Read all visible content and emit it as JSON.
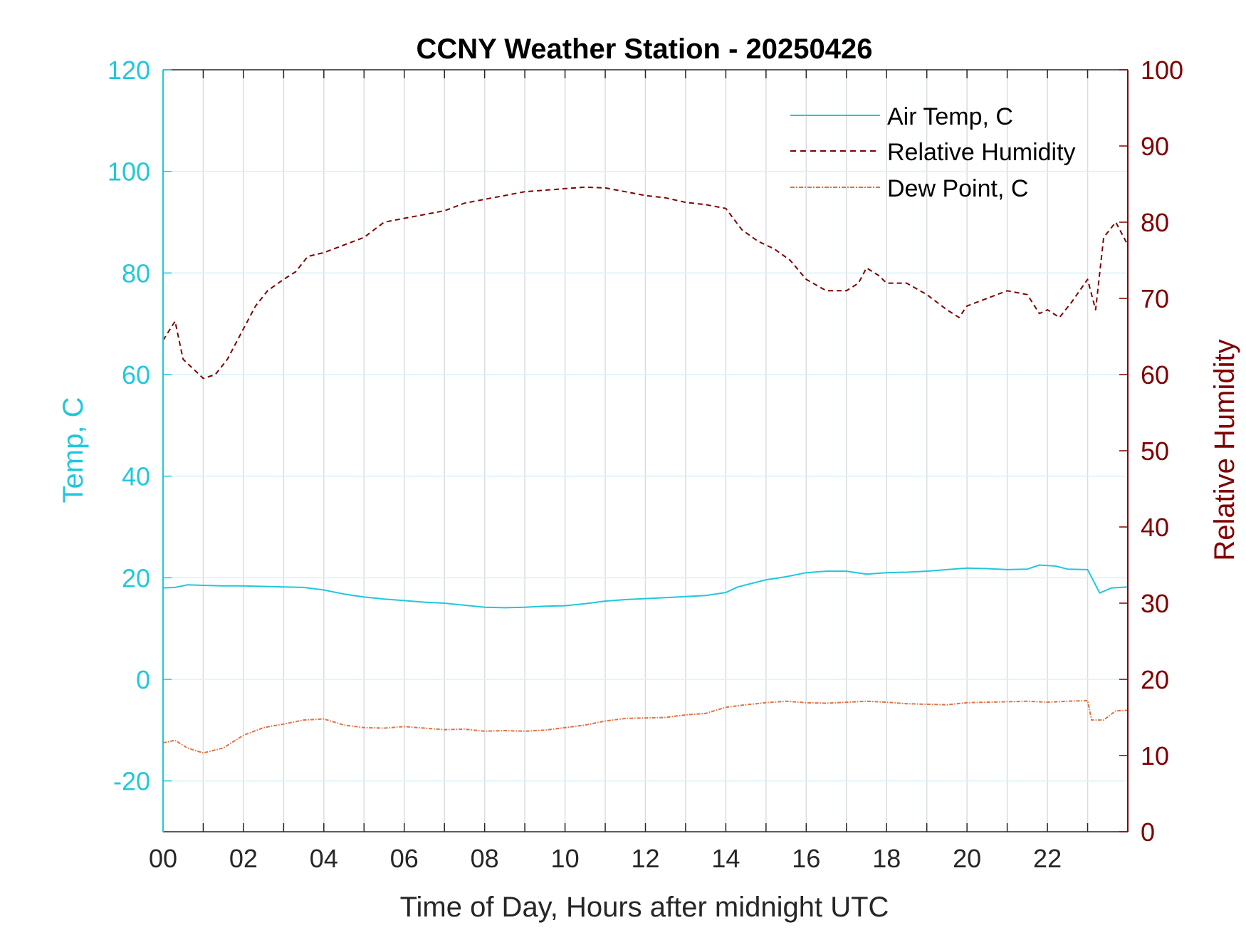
{
  "chart_data": {
    "type": "line",
    "title": "CCNY Weather Station - 20250426",
    "xlabel": "Time of Day, Hours after midnight UTC",
    "ylabel_left": "Temp, C",
    "ylabel_right": "Relative Humidity",
    "xlim": [
      0,
      24
    ],
    "ylim_left": [
      -30,
      120
    ],
    "ylim_right": [
      0,
      100
    ],
    "x_ticks": [
      0,
      2,
      4,
      6,
      8,
      10,
      12,
      14,
      16,
      18,
      20,
      22
    ],
    "x_tick_labels": [
      "00",
      "02",
      "04",
      "06",
      "08",
      "10",
      "12",
      "14",
      "16",
      "18",
      "20",
      "22"
    ],
    "y_ticks_left": [
      -20,
      0,
      20,
      40,
      60,
      80,
      100,
      120
    ],
    "y_ticks_right": [
      0,
      10,
      20,
      30,
      40,
      50,
      60,
      70,
      80,
      90,
      100
    ],
    "grid": true,
    "legend_position": "top-right",
    "colors": {
      "air_temp": "#1fc8dc",
      "humidity": "#7f0000",
      "dew_point": "#e07040",
      "left_axis": "#1fc8dc",
      "right_axis": "#7f0000"
    },
    "series": [
      {
        "name": "Air Temp, C",
        "axis": "left",
        "style": "solid",
        "points": [
          [
            0,
            18.0
          ],
          [
            0.3,
            18.1
          ],
          [
            0.6,
            18.6
          ],
          [
            1,
            18.5
          ],
          [
            1.5,
            18.4
          ],
          [
            2,
            18.4
          ],
          [
            2.5,
            18.3
          ],
          [
            3,
            18.2
          ],
          [
            3.5,
            18.1
          ],
          [
            4,
            17.6
          ],
          [
            4.5,
            16.8
          ],
          [
            5,
            16.2
          ],
          [
            5.5,
            15.8
          ],
          [
            6,
            15.5
          ],
          [
            6.5,
            15.2
          ],
          [
            7,
            15.0
          ],
          [
            7.5,
            14.6
          ],
          [
            8,
            14.2
          ],
          [
            8.5,
            14.1
          ],
          [
            9,
            14.2
          ],
          [
            9.5,
            14.4
          ],
          [
            10,
            14.5
          ],
          [
            10.5,
            14.9
          ],
          [
            11,
            15.4
          ],
          [
            11.5,
            15.7
          ],
          [
            12,
            15.9
          ],
          [
            12.5,
            16.1
          ],
          [
            13,
            16.3
          ],
          [
            13.5,
            16.5
          ],
          [
            14,
            17.1
          ],
          [
            14.3,
            18.2
          ],
          [
            14.7,
            19.0
          ],
          [
            15,
            19.6
          ],
          [
            15.5,
            20.2
          ],
          [
            16,
            21.0
          ],
          [
            16.5,
            21.3
          ],
          [
            17,
            21.3
          ],
          [
            17.5,
            20.7
          ],
          [
            18,
            21.0
          ],
          [
            18.5,
            21.1
          ],
          [
            19,
            21.3
          ],
          [
            19.5,
            21.6
          ],
          [
            20,
            21.9
          ],
          [
            20.5,
            21.8
          ],
          [
            21,
            21.6
          ],
          [
            21.5,
            21.7
          ],
          [
            21.8,
            22.5
          ],
          [
            22.2,
            22.3
          ],
          [
            22.5,
            21.7
          ],
          [
            23,
            21.6
          ],
          [
            23.3,
            17.0
          ],
          [
            23.6,
            18.0
          ],
          [
            24,
            18.2
          ]
        ]
      },
      {
        "name": "Relative Humidity",
        "axis": "right",
        "style": "dashed",
        "points": [
          [
            0,
            64.5
          ],
          [
            0.3,
            67
          ],
          [
            0.5,
            62
          ],
          [
            0.8,
            60.5
          ],
          [
            1,
            59.5
          ],
          [
            1.3,
            60
          ],
          [
            1.6,
            62
          ],
          [
            2,
            66
          ],
          [
            2.3,
            69
          ],
          [
            2.6,
            71
          ],
          [
            3,
            72.5
          ],
          [
            3.3,
            73.5
          ],
          [
            3.6,
            75.5
          ],
          [
            4,
            76
          ],
          [
            4.5,
            77
          ],
          [
            5,
            78
          ],
          [
            5.5,
            80
          ],
          [
            6,
            80.5
          ],
          [
            6.5,
            81
          ],
          [
            7,
            81.5
          ],
          [
            7.5,
            82.5
          ],
          [
            8,
            83
          ],
          [
            8.5,
            83.5
          ],
          [
            9,
            84
          ],
          [
            9.5,
            84.2
          ],
          [
            10,
            84.4
          ],
          [
            10.5,
            84.6
          ],
          [
            11,
            84.5
          ],
          [
            11.5,
            84
          ],
          [
            12,
            83.5
          ],
          [
            12.5,
            83.2
          ],
          [
            13,
            82.6
          ],
          [
            13.5,
            82.3
          ],
          [
            14,
            81.8
          ],
          [
            14.4,
            79
          ],
          [
            14.8,
            77.5
          ],
          [
            15.2,
            76.5
          ],
          [
            15.6,
            75
          ],
          [
            16,
            72.5
          ],
          [
            16.5,
            71
          ],
          [
            17,
            71
          ],
          [
            17.3,
            72
          ],
          [
            17.5,
            74
          ],
          [
            17.8,
            73
          ],
          [
            18,
            72
          ],
          [
            18.5,
            72
          ],
          [
            19,
            70.5
          ],
          [
            19.5,
            68.5
          ],
          [
            19.8,
            67.5
          ],
          [
            20,
            69
          ],
          [
            20.5,
            70
          ],
          [
            21,
            71
          ],
          [
            21.5,
            70.5
          ],
          [
            21.8,
            68
          ],
          [
            22,
            68.5
          ],
          [
            22.3,
            67.5
          ],
          [
            22.6,
            69.5
          ],
          [
            23,
            72.5
          ],
          [
            23.2,
            68.5
          ],
          [
            23.4,
            78
          ],
          [
            23.7,
            80
          ],
          [
            24,
            77
          ]
        ]
      },
      {
        "name": "Dew Point, C",
        "axis": "left",
        "style": "dash-dot",
        "points": [
          [
            0,
            -12.5
          ],
          [
            0.3,
            -12
          ],
          [
            0.6,
            -13.5
          ],
          [
            1,
            -14.5
          ],
          [
            1.5,
            -13.5
          ],
          [
            2,
            -11
          ],
          [
            2.5,
            -9.5
          ],
          [
            3,
            -8.8
          ],
          [
            3.5,
            -8
          ],
          [
            4,
            -7.8
          ],
          [
            4.5,
            -9
          ],
          [
            5,
            -9.5
          ],
          [
            5.5,
            -9.6
          ],
          [
            6,
            -9.3
          ],
          [
            6.5,
            -9.6
          ],
          [
            7,
            -9.9
          ],
          [
            7.5,
            -9.8
          ],
          [
            8,
            -10.2
          ],
          [
            8.5,
            -10.1
          ],
          [
            9,
            -10.2
          ],
          [
            9.5,
            -10
          ],
          [
            10,
            -9.5
          ],
          [
            10.5,
            -9
          ],
          [
            11,
            -8.2
          ],
          [
            11.5,
            -7.7
          ],
          [
            12,
            -7.6
          ],
          [
            12.5,
            -7.5
          ],
          [
            13,
            -7
          ],
          [
            13.5,
            -6.7
          ],
          [
            14,
            -5.5
          ],
          [
            14.5,
            -5
          ],
          [
            15,
            -4.6
          ],
          [
            15.5,
            -4.3
          ],
          [
            16,
            -4.6
          ],
          [
            16.5,
            -4.7
          ],
          [
            17,
            -4.5
          ],
          [
            17.5,
            -4.3
          ],
          [
            18,
            -4.5
          ],
          [
            18.5,
            -4.8
          ],
          [
            19,
            -4.9
          ],
          [
            19.5,
            -5
          ],
          [
            20,
            -4.6
          ],
          [
            20.5,
            -4.5
          ],
          [
            21,
            -4.4
          ],
          [
            21.5,
            -4.3
          ],
          [
            22,
            -4.5
          ],
          [
            22.5,
            -4.3
          ],
          [
            23,
            -4.2
          ],
          [
            23.1,
            -8
          ],
          [
            23.4,
            -8
          ],
          [
            23.7,
            -6.2
          ],
          [
            24,
            -6.1
          ]
        ]
      }
    ]
  }
}
